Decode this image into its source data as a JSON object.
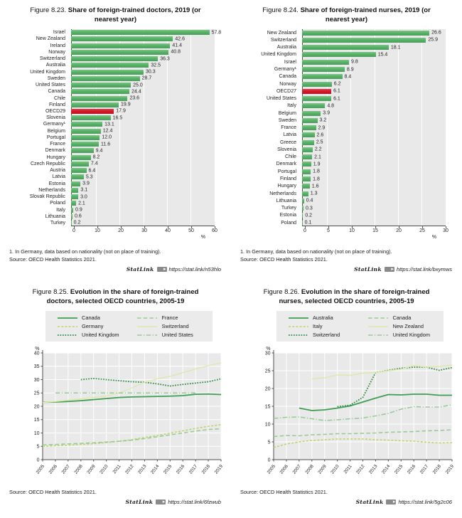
{
  "chart_data": [
    {
      "id": "figure-8-23",
      "type": "bar",
      "orientation": "horizontal",
      "title_prefix": "Figure 8.23.",
      "title": "Share of foreign-trained doctors, 2019 (or nearest year)",
      "unit": "%",
      "xlim": [
        0,
        60
      ],
      "xticks": [
        0,
        10,
        20,
        30,
        40,
        50,
        60
      ],
      "bar_color": "#58b168",
      "highlight_color": "#d21a2b",
      "highlight_category": "OECD29",
      "categories": [
        "Israel",
        "New Zealand",
        "Ireland",
        "Norway",
        "Switzerland",
        "Australia",
        "United Kingdom",
        "Sweden",
        "United States",
        "Canada",
        "Chile",
        "Finland",
        "OECD29",
        "Slovenia",
        "Germany¹",
        "Belgium",
        "Portugal",
        "France",
        "Denmark",
        "Hungary",
        "Czech Republic",
        "Austria",
        "Latvia",
        "Estonia",
        "Netherlands",
        "Slovak Republic",
        "Poland",
        "Italy",
        "Lithuania",
        "Turkey"
      ],
      "values": [
        57.8,
        42.6,
        41.4,
        40.8,
        36.3,
        32.5,
        30.3,
        28.7,
        25.0,
        24.4,
        23.6,
        19.9,
        17.9,
        16.5,
        13.1,
        12.4,
        12.0,
        11.6,
        9.4,
        8.2,
        7.4,
        6.4,
        5.3,
        3.9,
        3.1,
        3.0,
        2.1,
        0.9,
        0.6,
        0.2
      ],
      "footnote": "1. In Germany, data based on nationality (not on place of training).",
      "source": "Source: OECD Health Statistics 2021.",
      "statlink_label": "StatLink",
      "statlink_url": "https://stat.link/n53hlo"
    },
    {
      "id": "figure-8-24",
      "type": "bar",
      "orientation": "horizontal",
      "title_prefix": "Figure 8.24.",
      "title": "Share of foreign-trained nurses, 2019 (or nearest year)",
      "unit": "%",
      "xlim": [
        0,
        30
      ],
      "xticks": [
        0,
        5,
        10,
        15,
        20,
        25,
        30
      ],
      "bar_color": "#58b168",
      "highlight_color": "#d21a2b",
      "highlight_category": "OECD27",
      "categories": [
        "New Zealand",
        "Switzerland",
        "Australia",
        "United Kingdom",
        "Israel",
        "Germany¹",
        "Canada",
        "Norway",
        "OECD27",
        "United States",
        "Italy",
        "Belgium",
        "Sweden",
        "France",
        "Latvia",
        "Greece",
        "Slovenia",
        "Chile",
        "Denmark",
        "Portugal",
        "Finland",
        "Hungary",
        "Netherlands",
        "Lithuania",
        "Turkey",
        "Estonia",
        "Poland"
      ],
      "values": [
        26.6,
        25.9,
        18.1,
        15.4,
        9.8,
        8.9,
        8.4,
        6.2,
        6.1,
        6.1,
        4.8,
        3.9,
        3.2,
        2.9,
        2.6,
        2.5,
        2.2,
        2.1,
        1.9,
        1.8,
        1.8,
        1.6,
        1.3,
        0.4,
        0.3,
        0.2,
        0.1
      ],
      "footnote": "1. In Germany, data based on nationality (not on place of training).",
      "source": "Source: OECD Health Statistics 2021.",
      "statlink_label": "StatLink",
      "statlink_url": "https://stat.link/bxymws"
    },
    {
      "id": "figure-8-25",
      "type": "line",
      "title_prefix": "Figure 8.25.",
      "title": "Evolution in the share of foreign-trained doctors, selected OECD countries, 2005-19",
      "unit": "%",
      "ylim": [
        0,
        40
      ],
      "yticks": [
        0,
        5,
        10,
        15,
        20,
        25,
        30,
        35,
        40
      ],
      "x": [
        2005,
        2006,
        2007,
        2008,
        2009,
        2010,
        2011,
        2012,
        2013,
        2014,
        2015,
        2016,
        2017,
        2018,
        2019
      ],
      "grid": true,
      "legend_position": "top",
      "legend_rows": [
        [
          "Canada",
          "France"
        ],
        [
          "Germany",
          "Switzerland"
        ],
        [
          "United Kingdom",
          "United States"
        ]
      ],
      "series": [
        {
          "name": "Canada",
          "style": "solid",
          "color": "#3f9e53",
          "width": 1.8,
          "values": [
            21.5,
            21.6,
            21.8,
            22.1,
            22.5,
            22.9,
            23.3,
            23.5,
            23.6,
            23.7,
            23.8,
            24.0,
            24.5,
            24.6,
            24.4
          ]
        },
        {
          "name": "Germany",
          "style": "dash",
          "color": "#bfd468",
          "width": 1.6,
          "values": [
            5.0,
            5.2,
            5.4,
            5.7,
            6.0,
            6.4,
            6.9,
            7.5,
            8.3,
            9.1,
            9.9,
            10.8,
            11.7,
            12.5,
            13.1
          ]
        },
        {
          "name": "United Kingdom",
          "style": "dotted",
          "color": "#2e8b46",
          "width": 1.8,
          "values": [
            null,
            null,
            null,
            30.0,
            30.4,
            30.0,
            29.6,
            29.2,
            29.0,
            28.4,
            27.6,
            28.2,
            28.7,
            29.2,
            30.3
          ]
        },
        {
          "name": "France",
          "style": "longdash",
          "color": "#97cb97",
          "width": 1.6,
          "values": [
            5.5,
            5.7,
            5.9,
            6.1,
            6.3,
            6.6,
            6.9,
            7.3,
            7.9,
            8.6,
            9.3,
            10.0,
            10.7,
            11.3,
            11.6
          ]
        },
        {
          "name": "Switzerland",
          "style": "solid",
          "color": "#dfe8ab",
          "width": 1.4,
          "values": [
            21.4,
            21.8,
            22.3,
            22.8,
            23.3,
            23.9,
            25.0,
            26.9,
            29.0,
            30.3,
            31.2,
            32.6,
            34.0,
            35.2,
            36.3
          ]
        },
        {
          "name": "United States",
          "style": "dashdot",
          "color": "#97cb97",
          "width": 1.6,
          "values": [
            null,
            25.0,
            25.0,
            25.0,
            25.0,
            25.0,
            25.0,
            25.0,
            25.0,
            25.0,
            25.0,
            25.0,
            25.0,
            null,
            null
          ]
        }
      ],
      "source": "Source: OECD Health Statistics 2021.",
      "statlink_label": "StatLink",
      "statlink_url": "https://stat.link/6fzwub"
    },
    {
      "id": "figure-8-26",
      "type": "line",
      "title_prefix": "Figure 8.26.",
      "title": "Evolution in the share of foreign-trained nurses, selected OECD countries, 2005-19",
      "unit": "%",
      "ylim": [
        0,
        30
      ],
      "yticks": [
        0,
        5,
        10,
        15,
        20,
        25,
        30
      ],
      "x": [
        2005,
        2006,
        2007,
        2008,
        2009,
        2010,
        2011,
        2012,
        2013,
        2014,
        2015,
        2016,
        2017,
        2018,
        2019
      ],
      "grid": true,
      "legend_position": "top",
      "legend_rows": [
        [
          "Australia",
          "Canada"
        ],
        [
          "Italy",
          "New Zealand"
        ],
        [
          "Switzerland",
          "United Kingdom"
        ]
      ],
      "series": [
        {
          "name": "Australia",
          "style": "solid",
          "color": "#3f9e53",
          "width": 1.8,
          "values": [
            null,
            null,
            14.5,
            13.8,
            14.0,
            14.5,
            15.1,
            16.2,
            17.3,
            18.3,
            18.2,
            18.4,
            18.4,
            18.1,
            18.1
          ]
        },
        {
          "name": "Italy",
          "style": "dash",
          "color": "#bfd468",
          "width": 1.6,
          "values": [
            3.4,
            4.4,
            5.0,
            5.4,
            5.6,
            5.8,
            5.8,
            5.8,
            5.6,
            5.5,
            5.3,
            5.2,
            4.9,
            4.7,
            4.8
          ]
        },
        {
          "name": "Switzerland",
          "style": "dotted",
          "color": "#2e8b46",
          "width": 1.8,
          "values": [
            null,
            null,
            null,
            null,
            null,
            14.9,
            15.3,
            17.5,
            24.5,
            25.1,
            25.7,
            26.0,
            26.0,
            25.1,
            25.9
          ]
        },
        {
          "name": "Canada",
          "style": "longdash",
          "color": "#97cb97",
          "width": 1.6,
          "values": [
            6.5,
            6.8,
            6.7,
            7.0,
            7.1,
            7.3,
            7.3,
            7.4,
            7.5,
            7.7,
            7.8,
            7.9,
            8.1,
            8.2,
            8.4
          ]
        },
        {
          "name": "New Zealand",
          "style": "solid",
          "color": "#dfe8ab",
          "width": 1.4,
          "values": [
            null,
            null,
            null,
            22.7,
            23.0,
            23.8,
            23.7,
            24.3,
            24.5,
            25.0,
            25.4,
            26.5,
            26.0,
            26.2,
            26.6
          ]
        },
        {
          "name": "United Kingdom",
          "style": "dashdot",
          "color": "#97cb97",
          "width": 1.6,
          "values": [
            11.6,
            11.9,
            12.0,
            11.5,
            11.0,
            11.2,
            11.5,
            11.7,
            12.3,
            13.0,
            14.2,
            14.9,
            14.8,
            14.8,
            15.4
          ]
        }
      ],
      "source": "Source: OECD Health Statistics 2021.",
      "statlink_label": "StatLink",
      "statlink_url": "https://stat.link/5g2c06"
    }
  ]
}
